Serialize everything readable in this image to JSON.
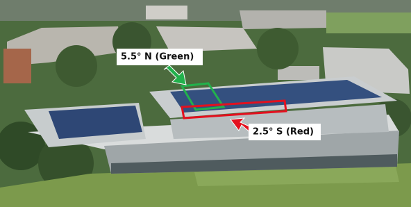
{
  "annotations": {
    "green_label": "5.5° N (Green)",
    "red_label": "2.5° S (Red)"
  }
}
